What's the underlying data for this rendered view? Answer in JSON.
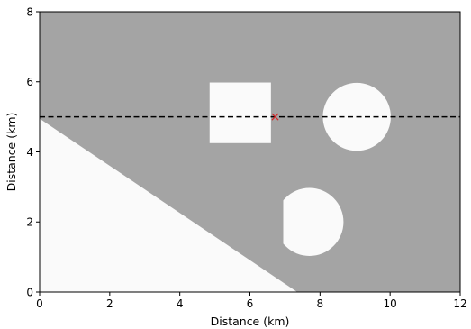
{
  "chart_data": {
    "type": "heatmap",
    "title": "",
    "xlabel": "Distance (km)",
    "ylabel": "Distance (km)",
    "xlim": [
      0,
      12
    ],
    "ylim": [
      0,
      8
    ],
    "xticks": [
      0,
      2,
      4,
      6,
      8,
      10,
      12
    ],
    "yticks": [
      0,
      2,
      4,
      6,
      8
    ],
    "xtick_labels": [
      "0",
      "2",
      "4",
      "6",
      "8",
      "10",
      "12"
    ],
    "ytick_labels": [
      "0",
      "2",
      "4",
      "6",
      "8"
    ],
    "grid": false,
    "legend": "none",
    "colors": {
      "background": "#a4a4a4",
      "anomaly": "#fafafa",
      "line": "#000000",
      "marker": "#d62728"
    },
    "regions": {
      "background": {
        "value": "gray"
      },
      "triangle": {
        "shape": "polygon",
        "points": [
          [
            0,
            0
          ],
          [
            0,
            4.95
          ],
          [
            7.35,
            0
          ]
        ]
      },
      "square": {
        "shape": "rect",
        "x": [
          4.85,
          6.6
        ],
        "y": [
          4.25,
          5.98
        ]
      },
      "circle_right": {
        "shape": "circle",
        "center": [
          9.05,
          5.0
        ],
        "radius": 0.97
      },
      "circle_lower": {
        "shape": "circle_clipped",
        "center": [
          7.7,
          2.0
        ],
        "radius": 0.97,
        "clip_x_min": 6.95
      }
    },
    "profile_line": {
      "y": 5.0,
      "x": [
        0,
        12
      ],
      "style": "dashed"
    },
    "marker": {
      "x": 6.72,
      "y": 5.0,
      "symbol": "x"
    }
  }
}
